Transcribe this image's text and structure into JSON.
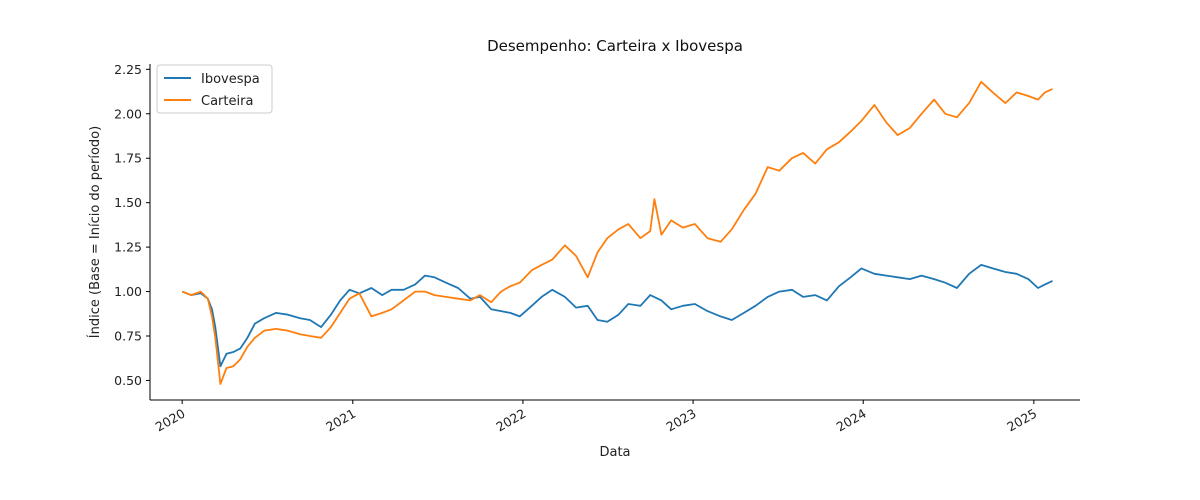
{
  "chart_data": {
    "type": "line",
    "title": "Desempenho: Carteira x Ibovespa",
    "xlabel": "Data",
    "ylabel": "Índice (Base = Início do período)",
    "xlim": [
      "2019-10-24",
      "2025-04-10"
    ],
    "ylim": [
      0.39,
      2.28
    ],
    "x_ticks": [
      {
        "date": "2020-01-01",
        "label": "2020"
      },
      {
        "date": "2021-01-01",
        "label": "2021"
      },
      {
        "date": "2022-01-01",
        "label": "2022"
      },
      {
        "date": "2023-01-01",
        "label": "2023"
      },
      {
        "date": "2024-01-01",
        "label": "2024"
      },
      {
        "date": "2025-01-01",
        "label": "2025"
      }
    ],
    "y_ticks": [
      "0.50",
      "0.75",
      "1.00",
      "1.25",
      "1.50",
      "1.75",
      "2.00",
      "2.25"
    ],
    "grid": false,
    "legend_position": "top-left",
    "colors": {
      "Ibovespa": "#1f77b4",
      "Carteira": "#ff7f0e"
    },
    "series": [
      {
        "name": "Ibovespa",
        "x": [
          "2020-01-01",
          "2020-01-20",
          "2020-02-10",
          "2020-02-25",
          "2020-03-05",
          "2020-03-12",
          "2020-03-23",
          "2020-04-05",
          "2020-04-20",
          "2020-05-05",
          "2020-05-20",
          "2020-06-05",
          "2020-06-25",
          "2020-07-20",
          "2020-08-15",
          "2020-09-10",
          "2020-10-01",
          "2020-10-25",
          "2020-11-15",
          "2020-12-05",
          "2020-12-25",
          "2021-01-15",
          "2021-02-10",
          "2021-03-05",
          "2021-03-25",
          "2021-04-20",
          "2021-05-15",
          "2021-06-05",
          "2021-06-25",
          "2021-07-20",
          "2021-08-15",
          "2021-09-10",
          "2021-10-01",
          "2021-10-25",
          "2021-11-15",
          "2021-12-05",
          "2021-12-25",
          "2022-01-20",
          "2022-02-10",
          "2022-03-05",
          "2022-04-01",
          "2022-04-25",
          "2022-05-20",
          "2022-06-10",
          "2022-07-01",
          "2022-07-25",
          "2022-08-15",
          "2022-09-10",
          "2022-10-01",
          "2022-10-25",
          "2022-11-15",
          "2022-12-10",
          "2023-01-05",
          "2023-02-01",
          "2023-03-01",
          "2023-03-25",
          "2023-04-20",
          "2023-05-15",
          "2023-06-10",
          "2023-07-05",
          "2023-08-01",
          "2023-08-25",
          "2023-09-20",
          "2023-10-15",
          "2023-11-10",
          "2023-12-05",
          "2023-12-28",
          "2024-01-25",
          "2024-02-20",
          "2024-03-15",
          "2024-04-10",
          "2024-05-05",
          "2024-06-01",
          "2024-06-25",
          "2024-07-20",
          "2024-08-15",
          "2024-09-10",
          "2024-10-05",
          "2024-11-01",
          "2024-11-25",
          "2024-12-20",
          "2025-01-10",
          "2025-01-25",
          "2025-02-10"
        ],
        "y": [
          1.0,
          0.98,
          0.99,
          0.96,
          0.9,
          0.8,
          0.58,
          0.65,
          0.66,
          0.68,
          0.74,
          0.82,
          0.85,
          0.88,
          0.87,
          0.85,
          0.84,
          0.8,
          0.87,
          0.95,
          1.01,
          0.99,
          1.02,
          0.98,
          1.01,
          1.01,
          1.04,
          1.09,
          1.08,
          1.05,
          1.02,
          0.96,
          0.97,
          0.9,
          0.89,
          0.88,
          0.86,
          0.92,
          0.97,
          1.01,
          0.97,
          0.91,
          0.92,
          0.84,
          0.83,
          0.87,
          0.93,
          0.92,
          0.98,
          0.95,
          0.9,
          0.92,
          0.93,
          0.89,
          0.86,
          0.84,
          0.88,
          0.92,
          0.97,
          1.0,
          1.01,
          0.97,
          0.98,
          0.95,
          1.03,
          1.08,
          1.13,
          1.1,
          1.09,
          1.08,
          1.07,
          1.09,
          1.07,
          1.05,
          1.02,
          1.1,
          1.15,
          1.13,
          1.11,
          1.1,
          1.07,
          1.02,
          1.04,
          1.06
        ]
      },
      {
        "name": "Carteira",
        "x": [
          "2020-01-01",
          "2020-01-20",
          "2020-02-10",
          "2020-02-25",
          "2020-03-05",
          "2020-03-12",
          "2020-03-23",
          "2020-04-05",
          "2020-04-20",
          "2020-05-05",
          "2020-05-20",
          "2020-06-05",
          "2020-06-25",
          "2020-07-20",
          "2020-08-15",
          "2020-09-10",
          "2020-10-01",
          "2020-10-25",
          "2020-11-15",
          "2020-12-05",
          "2020-12-25",
          "2021-01-15",
          "2021-02-10",
          "2021-03-05",
          "2021-03-25",
          "2021-04-20",
          "2021-05-15",
          "2021-06-05",
          "2021-06-25",
          "2021-07-20",
          "2021-08-15",
          "2021-09-10",
          "2021-10-01",
          "2021-10-25",
          "2021-11-15",
          "2021-12-05",
          "2021-12-25",
          "2022-01-20",
          "2022-02-10",
          "2022-03-05",
          "2022-04-01",
          "2022-04-25",
          "2022-05-20",
          "2022-06-10",
          "2022-07-01",
          "2022-07-25",
          "2022-08-15",
          "2022-09-10",
          "2022-10-01",
          "2022-10-10",
          "2022-10-25",
          "2022-11-15",
          "2022-12-10",
          "2023-01-05",
          "2023-02-01",
          "2023-03-01",
          "2023-03-25",
          "2023-04-20",
          "2023-05-15",
          "2023-06-10",
          "2023-07-05",
          "2023-08-01",
          "2023-08-25",
          "2023-09-20",
          "2023-10-15",
          "2023-11-10",
          "2023-12-05",
          "2023-12-28",
          "2024-01-25",
          "2024-02-20",
          "2024-03-15",
          "2024-04-10",
          "2024-05-05",
          "2024-06-01",
          "2024-06-25",
          "2024-07-20",
          "2024-08-15",
          "2024-09-10",
          "2024-10-05",
          "2024-11-01",
          "2024-11-25",
          "2024-12-20",
          "2025-01-10",
          "2025-01-25",
          "2025-02-10"
        ],
        "y": [
          1.0,
          0.98,
          1.0,
          0.96,
          0.86,
          0.74,
          0.48,
          0.57,
          0.58,
          0.62,
          0.69,
          0.74,
          0.78,
          0.79,
          0.78,
          0.76,
          0.75,
          0.74,
          0.8,
          0.88,
          0.96,
          0.99,
          0.86,
          0.88,
          0.9,
          0.95,
          1.0,
          1.0,
          0.98,
          0.97,
          0.96,
          0.95,
          0.98,
          0.94,
          1.0,
          1.03,
          1.05,
          1.12,
          1.15,
          1.18,
          1.26,
          1.2,
          1.08,
          1.22,
          1.3,
          1.35,
          1.38,
          1.3,
          1.34,
          1.52,
          1.32,
          1.4,
          1.36,
          1.38,
          1.3,
          1.28,
          1.35,
          1.46,
          1.55,
          1.7,
          1.68,
          1.75,
          1.78,
          1.72,
          1.8,
          1.84,
          1.9,
          1.96,
          2.05,
          1.95,
          1.88,
          1.92,
          2.0,
          2.08,
          2.0,
          1.98,
          2.06,
          2.18,
          2.12,
          2.06,
          2.12,
          2.1,
          2.08,
          2.12,
          2.14
        ]
      }
    ]
  }
}
